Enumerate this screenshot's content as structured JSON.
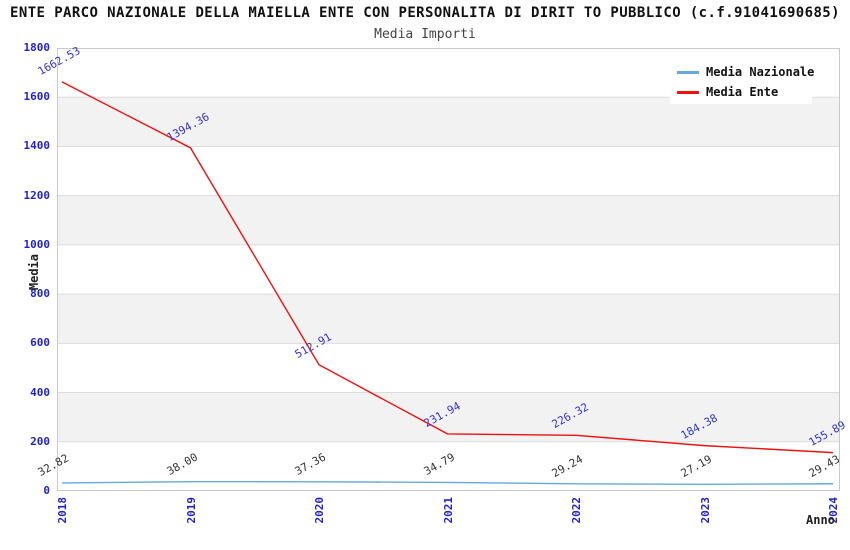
{
  "header": {
    "title": "ENTE PARCO NAZIONALE DELLA MAIELLA ENTE CON PERSONALITA DI DIRIT TO PUBBLICO (c.f.91041690685)",
    "subtitle": "Media Importi"
  },
  "chart_data": {
    "type": "line",
    "title": "Media Importi",
    "xlabel": "Anno",
    "ylabel": "Media",
    "categories": [
      "2018",
      "2019",
      "2020",
      "2021",
      "2022",
      "2023",
      "2024"
    ],
    "yticks": [
      0,
      200,
      400,
      600,
      800,
      1000,
      1200,
      1400,
      1600,
      1800
    ],
    "ylim": [
      0,
      1800
    ],
    "grid": true,
    "legend_position": "top-right",
    "band_color": "#f2f2f2",
    "gridline_color": "#dcdcdc",
    "border_color": "#c8c8c8",
    "tick_color": "#2222cc",
    "series": [
      {
        "name": "Media Nazionale",
        "color": "#66a8dd",
        "values": [
          32.82,
          38.0,
          37.36,
          34.79,
          29.24,
          27.19,
          29.43
        ],
        "point_labels": [
          "32.82",
          "38.00",
          "37.36",
          "34.79",
          "29.24",
          "27.19",
          "29.43"
        ],
        "label_color": "#333333"
      },
      {
        "name": "Media Ente",
        "color": "#ee1111",
        "values": [
          1662.53,
          1394.36,
          512.91,
          231.94,
          226.32,
          184.38,
          155.89
        ],
        "point_labels": [
          "1662.53",
          "1394.36",
          "512.91",
          "231.94",
          "226.32",
          "184.38",
          "155.89"
        ],
        "label_color": "#3333cc"
      }
    ]
  }
}
